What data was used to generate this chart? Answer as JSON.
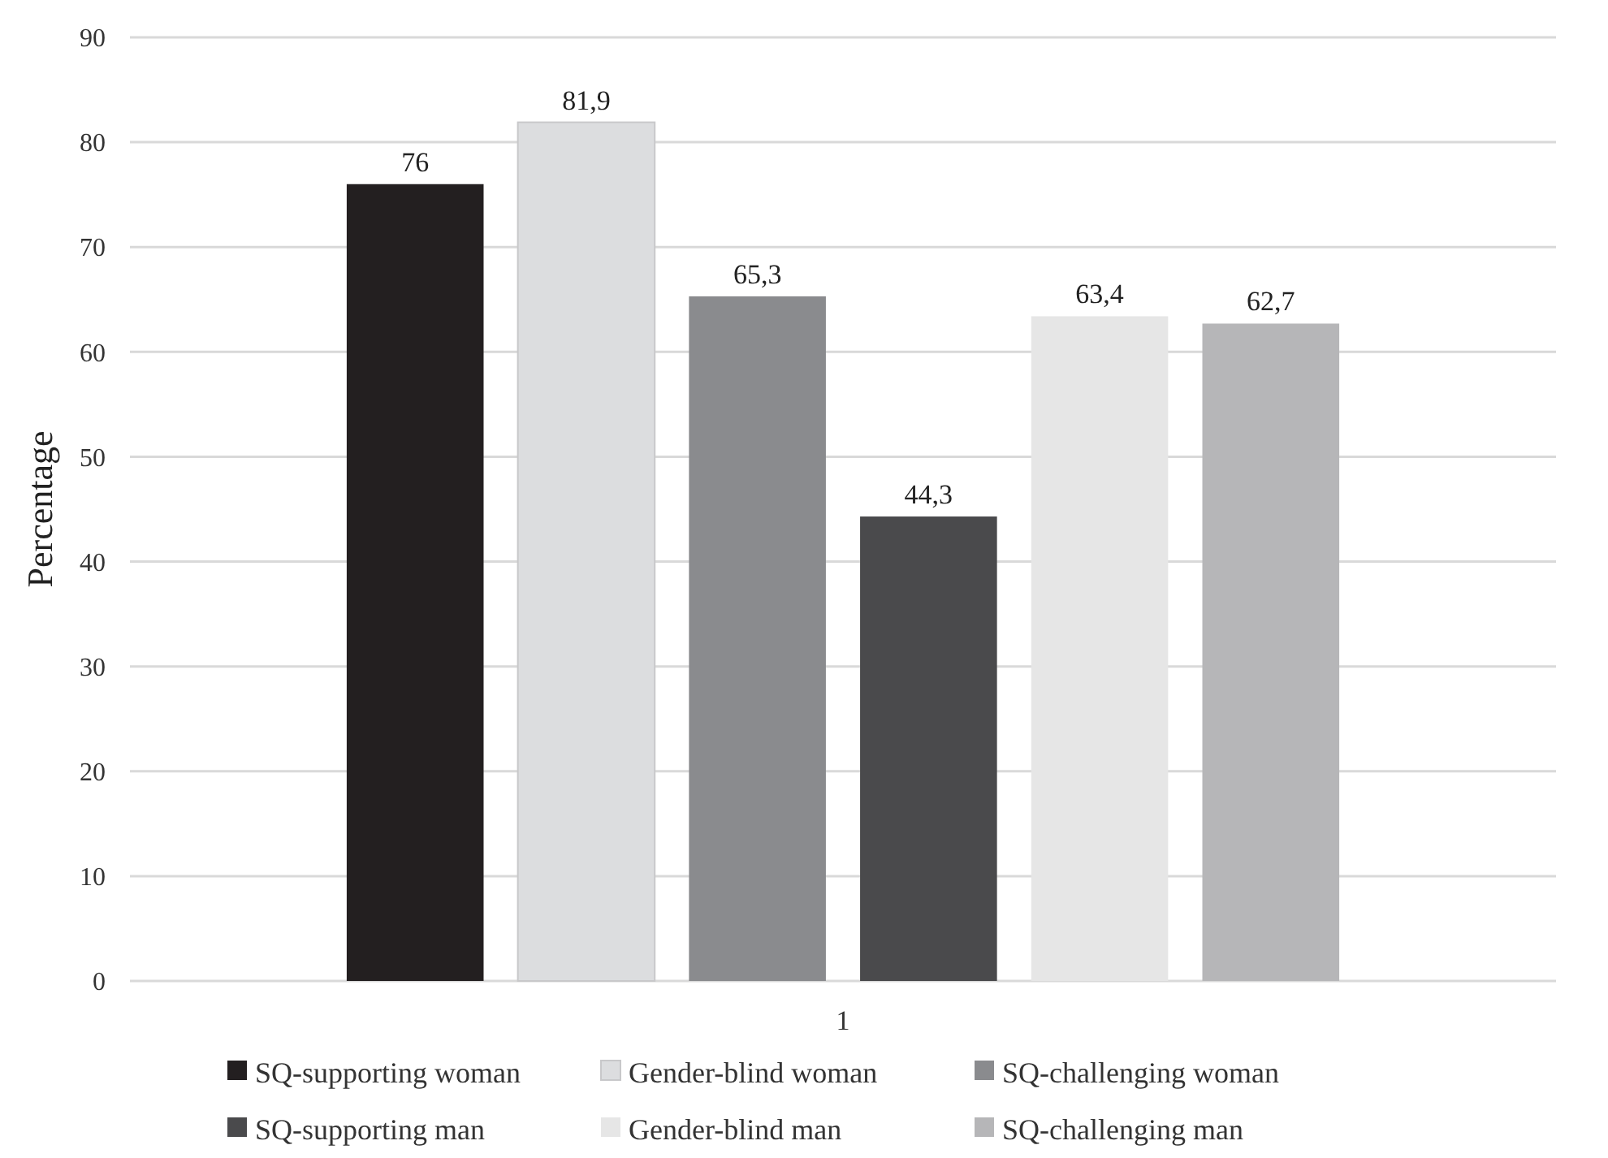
{
  "chart_data": {
    "type": "bar",
    "ylabel": "Percentage",
    "categories": [
      "1"
    ],
    "series": [
      {
        "name": "SQ-supporting woman",
        "color": "#231f20",
        "values": [
          76
        ],
        "value_labels": [
          "76"
        ]
      },
      {
        "name": "Gender-blind woman",
        "color": "#dcdddf",
        "values": [
          81.9
        ],
        "value_labels": [
          "81,9"
        ]
      },
      {
        "name": "SQ-challenging woman",
        "color": "#8a8b8e",
        "values": [
          65.3
        ],
        "value_labels": [
          "65,3"
        ]
      },
      {
        "name": "SQ-supporting man",
        "color": "#4a4a4c",
        "values": [
          44.3
        ],
        "value_labels": [
          "44,3"
        ]
      },
      {
        "name": "Gender-blind man",
        "color": "#e6e6e6",
        "values": [
          63.4
        ],
        "value_labels": [
          "63,4"
        ]
      },
      {
        "name": "SQ-challenging man",
        "color": "#b6b6b8",
        "values": [
          62.7
        ],
        "value_labels": [
          "62,7"
        ]
      }
    ],
    "ylim": [
      0,
      90
    ],
    "yticks": [
      0,
      10,
      20,
      30,
      40,
      50,
      60,
      70,
      80,
      90
    ],
    "grid": "y",
    "legend": "bottom"
  }
}
